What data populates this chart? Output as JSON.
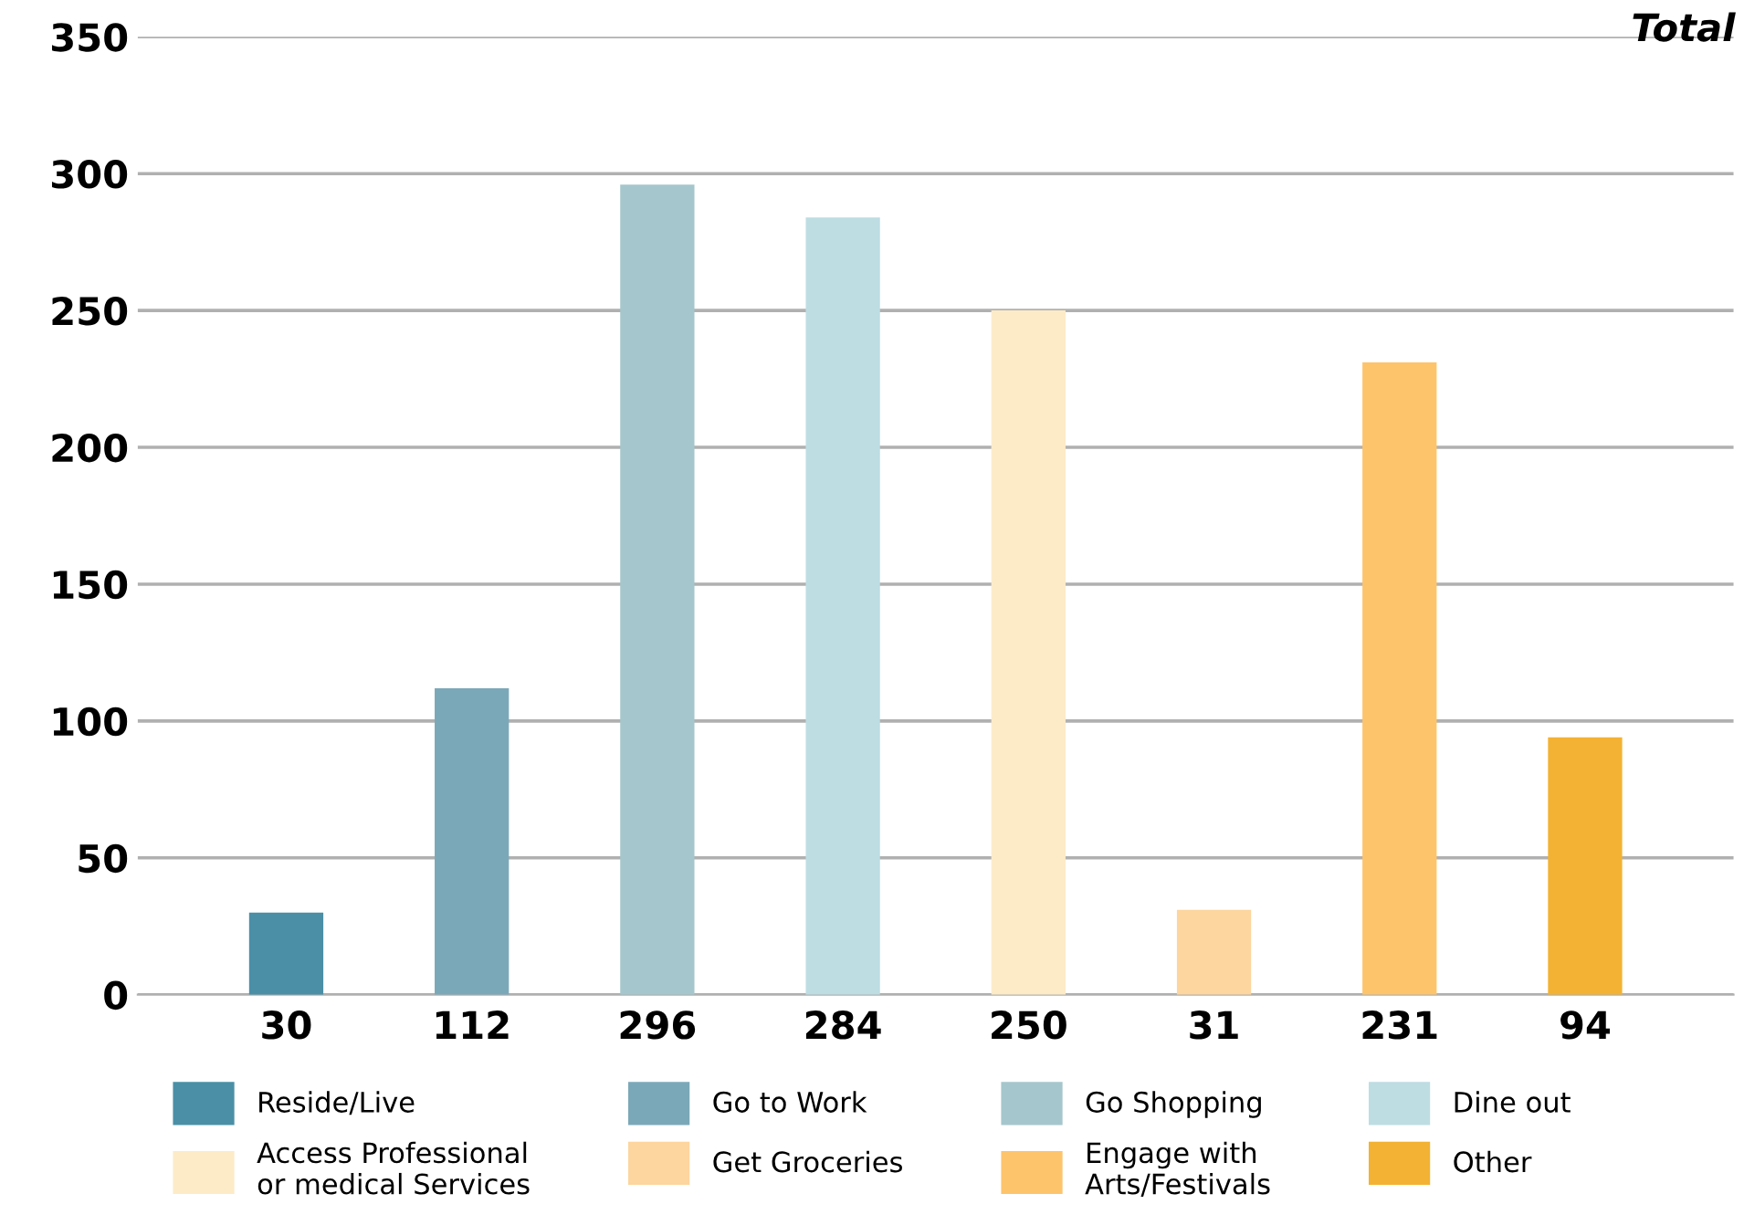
{
  "chart_data": {
    "type": "bar",
    "categories": [
      "30",
      "112",
      "296",
      "284",
      "250",
      "31",
      "231",
      "94"
    ],
    "series": [
      {
        "name": "Reside/Live",
        "color": "#4a8fa6",
        "values": [
          30,
          null,
          null,
          null,
          null,
          null,
          null,
          null
        ]
      },
      {
        "name": "Go to Work",
        "color": "#7ba8b8",
        "values": [
          null,
          112,
          null,
          null,
          null,
          null,
          null,
          null
        ]
      },
      {
        "name": "Go Shopping",
        "color": "#a5c6cc",
        "values": [
          null,
          null,
          296,
          null,
          null,
          null,
          null,
          null
        ]
      },
      {
        "name": "Dine out",
        "color": "#bddde3",
        "values": [
          null,
          null,
          null,
          284,
          null,
          null,
          null,
          null
        ]
      },
      {
        "name": "Access Professional\nor medical Services",
        "color": "#fdebc8",
        "values": [
          null,
          null,
          null,
          null,
          250,
          null,
          null,
          null
        ]
      },
      {
        "name": "Get Groceries",
        "color": "#fdd59e",
        "values": [
          null,
          null,
          null,
          null,
          null,
          31,
          null,
          null
        ]
      },
      {
        "name": "Engage with\nArts/Festivals",
        "color": "#fdc46c",
        "values": [
          null,
          null,
          null,
          null,
          null,
          null,
          231,
          null
        ]
      },
      {
        "name": "Other",
        "color": "#f3b233",
        "values": [
          null,
          null,
          null,
          null,
          null,
          null,
          null,
          94
        ]
      }
    ],
    "ylim": [
      0,
      350
    ],
    "yticks": [
      0,
      50,
      100,
      150,
      200,
      250,
      300,
      350
    ],
    "grid": "y",
    "legend": "bottom",
    "annotations": [
      "Total"
    ]
  }
}
